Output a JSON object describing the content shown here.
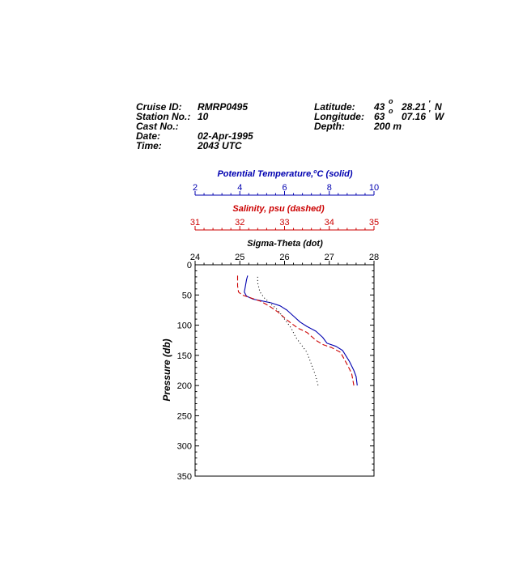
{
  "header": {
    "cruise_id_label": "Cruise ID:",
    "cruise_id": "RMRP0495",
    "station_label": "Station No.:",
    "station": "10",
    "cast_label": "Cast No.:",
    "cast": "",
    "date_label": "Date:",
    "date": "02-Apr-1995",
    "time_label": "Time:",
    "time": "2043 UTC",
    "latitude_label": "Latitude:",
    "latitude_deg": "43",
    "latitude_min": "28.21",
    "latitude_hemi": "N",
    "longitude_label": "Longitude:",
    "longitude_deg": "63",
    "longitude_min": "07.16",
    "longitude_hemi": "W",
    "depth_label": "Depth:",
    "depth": "200 m",
    "degree_mark": "o",
    "minute_mark": "'"
  },
  "colors": {
    "temperature": "#0000b0",
    "salinity": "#cc0000",
    "sigma": "#000000"
  },
  "chart_data": {
    "type": "line",
    "ylabel": "Pressure (db)",
    "ylim": [
      0,
      350
    ],
    "yticks": [
      0,
      50,
      100,
      150,
      200,
      250,
      300,
      350
    ],
    "y_inverted": true,
    "axes": {
      "temperature": {
        "label_prefix": "Potential Temperature,",
        "label_sup": "o",
        "label_suffix": "C (solid)",
        "xlim": [
          2,
          10
        ],
        "ticks": [
          2,
          4,
          6,
          8,
          10
        ]
      },
      "salinity": {
        "label": "Salinity, psu  (dashed)",
        "xlim": [
          31,
          35
        ],
        "ticks": [
          31,
          32,
          33,
          34,
          35
        ]
      },
      "sigma": {
        "label": "Sigma-Theta (dot)",
        "xlim": [
          24,
          28
        ],
        "ticks": [
          24,
          25,
          26,
          27,
          28
        ]
      }
    },
    "series": [
      {
        "axis": "temperature",
        "style": "solid",
        "points": [
          [
            4.35,
            18
          ],
          [
            4.3,
            25
          ],
          [
            4.25,
            35
          ],
          [
            4.2,
            45
          ],
          [
            4.3,
            52
          ],
          [
            4.6,
            57
          ],
          [
            5.0,
            60
          ],
          [
            5.4,
            63
          ],
          [
            5.8,
            68
          ],
          [
            6.1,
            75
          ],
          [
            6.4,
            85
          ],
          [
            6.7,
            95
          ],
          [
            7.0,
            102
          ],
          [
            7.4,
            110
          ],
          [
            7.7,
            120
          ],
          [
            7.9,
            130
          ],
          [
            8.3,
            135
          ],
          [
            8.6,
            142
          ],
          [
            8.9,
            160
          ],
          [
            9.1,
            175
          ],
          [
            9.2,
            185
          ],
          [
            9.25,
            200
          ]
        ]
      },
      {
        "axis": "salinity",
        "style": "dashed",
        "points": [
          [
            31.95,
            18
          ],
          [
            31.95,
            25
          ],
          [
            31.95,
            35
          ],
          [
            31.97,
            45
          ],
          [
            32.05,
            50
          ],
          [
            32.25,
            55
          ],
          [
            32.45,
            60
          ],
          [
            32.65,
            68
          ],
          [
            32.85,
            78
          ],
          [
            33.0,
            88
          ],
          [
            33.15,
            97
          ],
          [
            33.3,
            105
          ],
          [
            33.5,
            112
          ],
          [
            33.7,
            125
          ],
          [
            33.85,
            132
          ],
          [
            34.05,
            137
          ],
          [
            34.25,
            145
          ],
          [
            34.4,
            165
          ],
          [
            34.5,
            180
          ],
          [
            34.55,
            200
          ]
        ]
      },
      {
        "axis": "sigma",
        "style": "dotted",
        "points": [
          [
            25.4,
            20
          ],
          [
            25.4,
            30
          ],
          [
            25.45,
            45
          ],
          [
            25.55,
            55
          ],
          [
            25.7,
            65
          ],
          [
            25.85,
            75
          ],
          [
            25.95,
            85
          ],
          [
            26.05,
            95
          ],
          [
            26.15,
            105
          ],
          [
            26.25,
            120
          ],
          [
            26.35,
            130
          ],
          [
            26.5,
            145
          ],
          [
            26.6,
            165
          ],
          [
            26.7,
            185
          ],
          [
            26.75,
            200
          ]
        ]
      }
    ]
  }
}
